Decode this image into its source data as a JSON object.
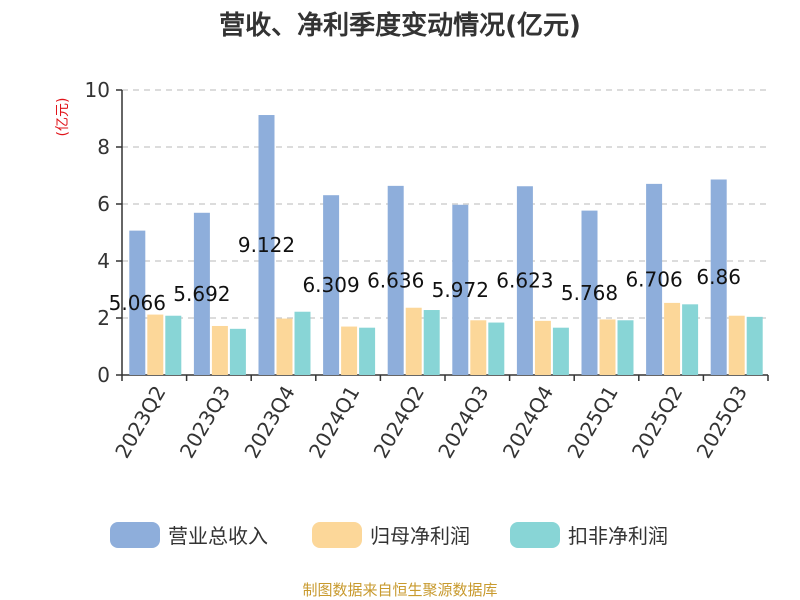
{
  "chart_data": {
    "type": "bar",
    "title": "营收、净利季度变动情况(亿元)",
    "ylabel": "(亿元)",
    "ylim": [
      0,
      10
    ],
    "yticks": [
      0,
      2,
      4,
      6,
      8,
      10
    ],
    "grid": true,
    "legend_position": "bottom",
    "categories": [
      "2023Q2",
      "2023Q3",
      "2023Q4",
      "2024Q1",
      "2024Q2",
      "2024Q3",
      "2024Q4",
      "2025Q1",
      "2025Q2",
      "2025Q3"
    ],
    "series": [
      {
        "name": "营业总收入",
        "color": "#8eaedb",
        "values": [
          5.066,
          5.692,
          9.122,
          6.309,
          6.636,
          5.972,
          6.623,
          5.768,
          6.706,
          6.86
        ],
        "labels": [
          "5.066",
          "5.692",
          "9.122",
          "6.309",
          "6.636",
          "5.972",
          "6.623",
          "5.768",
          "6.706",
          "6.86"
        ]
      },
      {
        "name": "归母净利润",
        "color": "#fcd799",
        "values": [
          2.12,
          1.72,
          1.98,
          1.7,
          2.36,
          1.92,
          1.9,
          1.95,
          2.53,
          2.08
        ]
      },
      {
        "name": "扣非净利润",
        "color": "#88d5d6",
        "values": [
          2.08,
          1.62,
          2.22,
          1.66,
          2.28,
          1.84,
          1.66,
          1.92,
          2.48,
          2.04
        ]
      }
    ]
  },
  "source": "制图数据来自恒生聚源数据库",
  "colors": {
    "unit_label": "#e0141a",
    "source_text": "#c89a2e",
    "grid": "#c8c8c8",
    "axis": "#333333"
  }
}
